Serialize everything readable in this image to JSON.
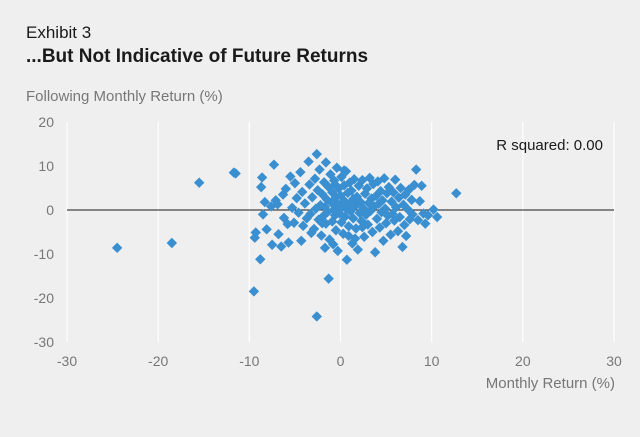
{
  "header": {
    "exhibit": "Exhibit 3",
    "title": "...But Not Indicative of Future Returns"
  },
  "chart_data": {
    "type": "scatter",
    "title": "...But Not Indicative of Future Returns",
    "xlabel": "Monthly Return (%)",
    "ylabel": "Following Monthly Return (%)",
    "xlim": [
      -30,
      30
    ],
    "ylim": [
      -30,
      20
    ],
    "xticks": [
      -30,
      -20,
      -10,
      0,
      10,
      20,
      30
    ],
    "yticks": [
      20,
      10,
      0,
      -10,
      -20,
      -30
    ],
    "grid": "vertical",
    "annotation": "R squared: 0.00",
    "marker_color": "#3a8fd1",
    "points": [
      [
        -24.5,
        -8.6
      ],
      [
        -18.5,
        -7.5
      ],
      [
        -15.5,
        6.2
      ],
      [
        -11.7,
        8.5
      ],
      [
        -11.5,
        8.3
      ],
      [
        -9.5,
        -18.5
      ],
      [
        -9.3,
        -5.1
      ],
      [
        -9.4,
        -6.3
      ],
      [
        -8.8,
        -11.2
      ],
      [
        -8.6,
        7.4
      ],
      [
        -8.7,
        5.2
      ],
      [
        -8.5,
        -1.0
      ],
      [
        -8.3,
        1.8
      ],
      [
        -8.1,
        -4.4
      ],
      [
        -7.5,
        -7.9
      ],
      [
        -7.6,
        0.8
      ],
      [
        -7.3,
        10.3
      ],
      [
        -7.1,
        2.2
      ],
      [
        -6.9,
        1.3
      ],
      [
        -6.8,
        -5.5
      ],
      [
        -6.5,
        -8.3
      ],
      [
        -6.3,
        3.5
      ],
      [
        -6.0,
        4.8
      ],
      [
        -6.2,
        -1.8
      ],
      [
        -5.7,
        -7.4
      ],
      [
        -5.5,
        7.6
      ],
      [
        -5.3,
        0.5
      ],
      [
        -5.1,
        -2.9
      ],
      [
        -5.0,
        6.1
      ],
      [
        -4.8,
        2.7
      ],
      [
        -4.6,
        -0.6
      ],
      [
        -4.4,
        8.6
      ],
      [
        -4.2,
        4.1
      ],
      [
        -4.1,
        -3.6
      ],
      [
        -3.9,
        1.5
      ],
      [
        -3.7,
        -1.9
      ],
      [
        -3.5,
        11.0
      ],
      [
        -3.4,
        5.8
      ],
      [
        -3.3,
        -0.9
      ],
      [
        -3.1,
        2.9
      ],
      [
        -2.9,
        -4.3
      ],
      [
        -2.8,
        7.1
      ],
      [
        -2.7,
        0.3
      ],
      [
        -2.6,
        -24.2
      ],
      [
        -2.6,
        12.7
      ],
      [
        -2.5,
        4.5
      ],
      [
        -2.4,
        -2.2
      ],
      [
        -2.3,
        9.2
      ],
      [
        -2.2,
        1.1
      ],
      [
        -2.1,
        -5.8
      ],
      [
        -2.0,
        3.6
      ],
      [
        -1.9,
        -1.4
      ],
      [
        -1.8,
        6.3
      ],
      [
        -1.7,
        0.7
      ],
      [
        -1.6,
        -3.1
      ],
      [
        -1.6,
        10.8
      ],
      [
        -1.5,
        2.4
      ],
      [
        -1.4,
        -0.4
      ],
      [
        -1.3,
        5.2
      ],
      [
        -1.3,
        -15.6
      ],
      [
        -1.2,
        -6.7
      ],
      [
        -1.1,
        8.1
      ],
      [
        -1.0,
        1.7
      ],
      [
        -0.9,
        -2.6
      ],
      [
        -0.9,
        4.0
      ],
      [
        -0.8,
        -7.8
      ],
      [
        -0.7,
        0.1
      ],
      [
        -0.7,
        6.7
      ],
      [
        -0.6,
        -1.2
      ],
      [
        -0.5,
        2.9
      ],
      [
        -0.5,
        -4.6
      ],
      [
        -0.4,
        9.6
      ],
      [
        -0.3,
        1.3
      ],
      [
        -0.3,
        -9.3
      ],
      [
        -0.2,
        4.9
      ],
      [
        -0.1,
        -0.8
      ],
      [
        0.0,
        3.3
      ],
      [
        0.1,
        -2.8
      ],
      [
        0.1,
        7.5
      ],
      [
        0.2,
        0.6
      ],
      [
        0.3,
        -5.4
      ],
      [
        0.4,
        2.1
      ],
      [
        0.4,
        5.6
      ],
      [
        0.5,
        -1.5
      ],
      [
        0.6,
        8.8
      ],
      [
        0.7,
        0.2
      ],
      [
        0.7,
        -11.3
      ],
      [
        0.8,
        3.9
      ],
      [
        0.9,
        -3.7
      ],
      [
        1.0,
        6.2
      ],
      [
        1.0,
        1.2
      ],
      [
        1.1,
        -0.3
      ],
      [
        1.2,
        4.4
      ],
      [
        1.3,
        -7.6
      ],
      [
        1.4,
        2.5
      ],
      [
        1.4,
        -1.9
      ],
      [
        1.5,
        7.0
      ],
      [
        1.6,
        0.9
      ],
      [
        1.7,
        -4.2
      ],
      [
        1.8,
        3.0
      ],
      [
        1.9,
        -9.0
      ],
      [
        2.0,
        5.5
      ],
      [
        2.1,
        -0.7
      ],
      [
        2.2,
        1.8
      ],
      [
        2.3,
        -2.5
      ],
      [
        2.4,
        6.8
      ],
      [
        2.5,
        0.4
      ],
      [
        2.6,
        -6.1
      ],
      [
        2.7,
        3.7
      ],
      [
        2.8,
        -1.1
      ],
      [
        2.9,
        4.9
      ],
      [
        3.0,
        -3.3
      ],
      [
        3.1,
        1.6
      ],
      [
        3.2,
        7.3
      ],
      [
        3.3,
        -0.2
      ],
      [
        3.4,
        2.6
      ],
      [
        3.5,
        -5.0
      ],
      [
        3.6,
        5.9
      ],
      [
        3.7,
        0.8
      ],
      [
        3.8,
        -9.6
      ],
      [
        3.9,
        3.2
      ],
      [
        4.0,
        -2.0
      ],
      [
        4.1,
        6.5
      ],
      [
        4.2,
        1.4
      ],
      [
        4.3,
        -4.0
      ],
      [
        4.4,
        4.3
      ],
      [
        4.5,
        -0.5
      ],
      [
        4.6,
        2.2
      ],
      [
        4.7,
        -7.0
      ],
      [
        4.8,
        7.2
      ],
      [
        4.9,
        0.3
      ],
      [
        5.0,
        -3.0
      ],
      [
        5.1,
        3.8
      ],
      [
        5.2,
        -1.3
      ],
      [
        5.3,
        5.2
      ],
      [
        5.5,
        -5.6
      ],
      [
        5.6,
        1.9
      ],
      [
        5.7,
        -0.9
      ],
      [
        5.8,
        4.0
      ],
      [
        5.9,
        -2.4
      ],
      [
        6.0,
        6.9
      ],
      [
        6.1,
        0.6
      ],
      [
        6.3,
        -4.8
      ],
      [
        6.4,
        2.8
      ],
      [
        6.5,
        -1.6
      ],
      [
        6.6,
        5.0
      ],
      [
        6.8,
        -8.4
      ],
      [
        6.9,
        1.2
      ],
      [
        7.0,
        -3.4
      ],
      [
        7.1,
        3.5
      ],
      [
        7.2,
        -5.9
      ],
      [
        7.4,
        0.1
      ],
      [
        7.5,
        4.6
      ],
      [
        7.6,
        -2.1
      ],
      [
        7.8,
        2.3
      ],
      [
        7.9,
        -1.0
      ],
      [
        8.1,
        5.7
      ],
      [
        8.3,
        9.2
      ],
      [
        8.5,
        -2.3
      ],
      [
        8.7,
        2.0
      ],
      [
        8.9,
        5.5
      ],
      [
        9.1,
        -0.8
      ],
      [
        9.3,
        -3.1
      ],
      [
        9.6,
        -1.2
      ],
      [
        10.2,
        0.1
      ],
      [
        10.6,
        -1.6
      ],
      [
        12.7,
        3.8
      ],
      [
        -3.2,
        -5.2
      ],
      [
        -4.3,
        -7.0
      ],
      [
        -5.8,
        -3.2
      ],
      [
        -1.7,
        -8.6
      ],
      [
        0.9,
        -5.9
      ],
      [
        2.4,
        -3.9
      ],
      [
        -2.0,
        -3.0
      ],
      [
        1.6,
        -6.5
      ],
      [
        -0.6,
        5.8
      ],
      [
        0.4,
        9.0
      ]
    ]
  }
}
